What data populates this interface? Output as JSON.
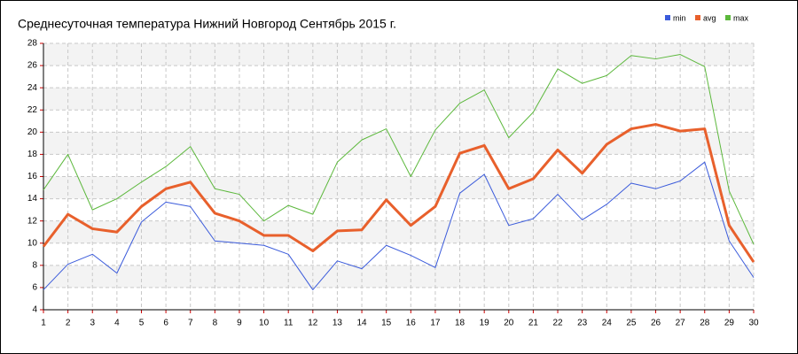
{
  "chart_data": {
    "type": "line",
    "title": "Среднесуточная температура Нижний Новгород  Сентябрь 2015 г.",
    "x": [
      1,
      2,
      3,
      4,
      5,
      6,
      7,
      8,
      9,
      10,
      11,
      12,
      13,
      14,
      15,
      16,
      17,
      18,
      19,
      20,
      21,
      22,
      23,
      24,
      25,
      26,
      27,
      28,
      29,
      30
    ],
    "xlim": [
      1,
      30
    ],
    "xticks": [
      1,
      2,
      3,
      4,
      5,
      6,
      7,
      8,
      9,
      10,
      11,
      12,
      13,
      14,
      15,
      16,
      17,
      18,
      19,
      20,
      21,
      22,
      23,
      24,
      25,
      26,
      27,
      28,
      29,
      30
    ],
    "ylim": [
      4,
      28
    ],
    "yticks": [
      4,
      6,
      8,
      10,
      12,
      14,
      16,
      18,
      20,
      22,
      24,
      26,
      28
    ],
    "grid": true,
    "legend": "top-right",
    "series": [
      {
        "name": "min",
        "color": "#3b5bdb",
        "values": [
          5.8,
          8.1,
          9.0,
          7.3,
          11.9,
          13.7,
          13.3,
          10.2,
          10.0,
          9.8,
          9.0,
          5.8,
          8.4,
          7.7,
          9.8,
          8.9,
          7.8,
          14.5,
          16.2,
          11.6,
          12.2,
          14.4,
          12.1,
          13.5,
          15.4,
          14.9,
          15.6,
          17.3,
          10.2,
          6.9
        ]
      },
      {
        "name": "avg",
        "color": "#e8602c",
        "values": [
          9.7,
          12.6,
          11.3,
          11.0,
          13.3,
          14.9,
          15.5,
          12.7,
          12.0,
          10.7,
          10.7,
          9.3,
          11.1,
          11.2,
          13.9,
          11.6,
          13.3,
          18.1,
          18.8,
          14.9,
          15.8,
          18.4,
          16.3,
          18.9,
          20.3,
          20.7,
          20.1,
          20.3,
          11.6,
          8.3
        ]
      },
      {
        "name": "max",
        "color": "#5cb83c",
        "values": [
          14.8,
          18.0,
          13.0,
          14.0,
          15.5,
          16.9,
          18.7,
          14.9,
          14.4,
          12.0,
          13.4,
          12.6,
          17.3,
          19.3,
          20.3,
          16.0,
          20.2,
          22.6,
          23.8,
          19.5,
          21.8,
          25.7,
          24.4,
          25.1,
          26.9,
          26.6,
          27.0,
          25.9,
          14.7,
          9.9
        ]
      }
    ]
  }
}
